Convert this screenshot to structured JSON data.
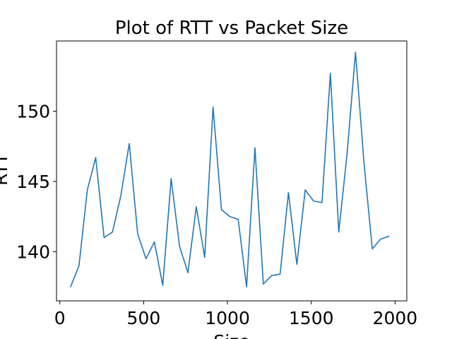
{
  "chart_data": {
    "type": "line",
    "title": "Plot of RTT vs Packet Size",
    "xlabel": "Size",
    "ylabel": "RTT",
    "xlim": [
      -20,
      2070
    ],
    "ylim": [
      136.5,
      155.0
    ],
    "xticks": [
      0,
      500,
      1000,
      1500,
      2000
    ],
    "yticks": [
      140,
      145,
      150
    ],
    "grid": false,
    "line_color": "#1f77b4",
    "series": [
      {
        "x": [
          64,
          114,
          164,
          214,
          264,
          314,
          364,
          414,
          464,
          514,
          564,
          614,
          664,
          714,
          764,
          814,
          864,
          914,
          964,
          1014,
          1064,
          1114,
          1164,
          1214,
          1264,
          1314,
          1364,
          1414,
          1464,
          1514,
          1564,
          1614,
          1664,
          1714,
          1764,
          1814,
          1864,
          1914,
          1964
        ],
        "values": [
          137.5,
          139.0,
          144.4,
          146.7,
          141.0,
          141.4,
          144.0,
          147.7,
          141.3,
          139.5,
          140.7,
          137.6,
          145.2,
          140.4,
          138.5,
          143.2,
          139.6,
          150.3,
          143.0,
          142.5,
          142.3,
          137.5,
          147.4,
          137.7,
          138.3,
          138.4,
          144.2,
          139.1,
          144.4,
          143.6,
          143.5,
          152.7,
          141.4,
          147.0,
          154.2,
          146.4,
          140.2,
          140.9,
          141.1
        ]
      }
    ]
  }
}
